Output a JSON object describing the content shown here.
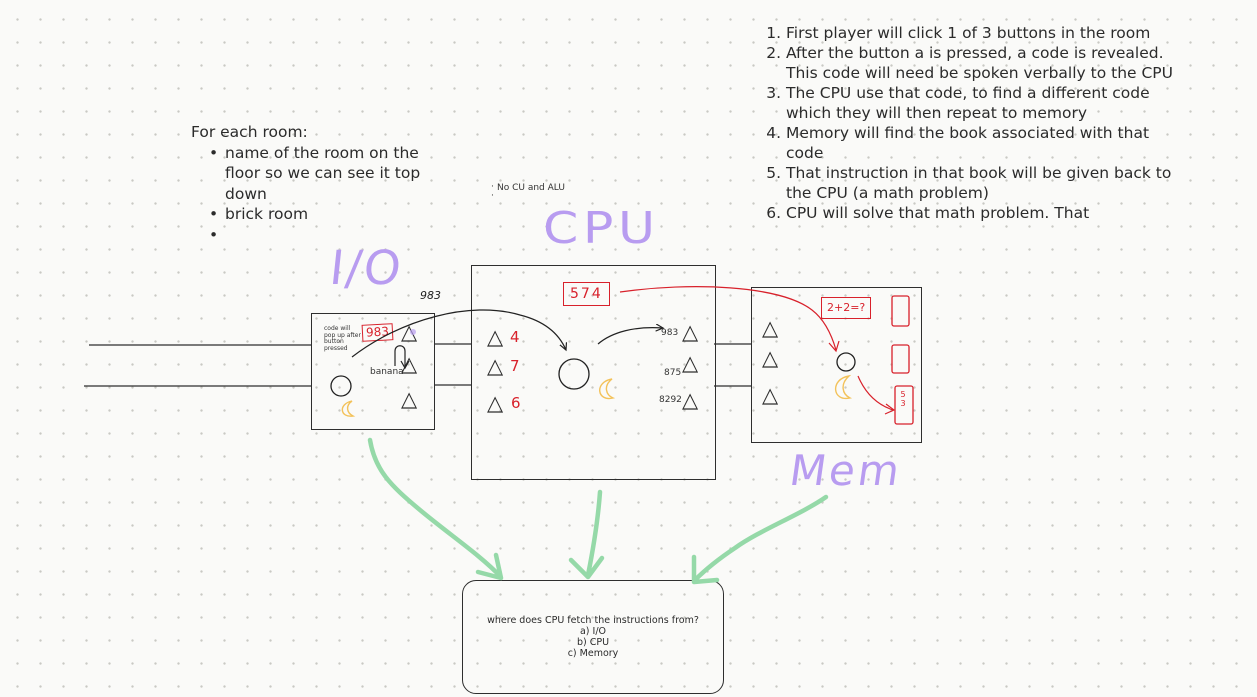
{
  "room_notes": {
    "heading": "For each room:",
    "items": [
      "name of the room on the floor so we can see it top down",
      "brick room",
      ""
    ]
  },
  "steps": [
    "First player will click 1 of 3 buttons in the room",
    "After the button a is pressed, a code is revealed. This code will need be spoken verbally to the CPU",
    "The CPU use that code, to find a different code which they will then repeat to memory",
    "Memory will find the book associated with that code",
    "That instruction in that book will be given back to the CPU (a math problem)",
    "CPU will solve that math problem. That"
  ],
  "cpu_note": "No CU and ALU",
  "labels": {
    "io": "I/O",
    "cpu": "CPU",
    "mem": "Mem"
  },
  "io_room": {
    "note": "code will pop up after button pressed",
    "code": "983",
    "item": "banana",
    "spoken_code": "983"
  },
  "cpu_room": {
    "code": "574",
    "button_numbers": [
      "4",
      "7",
      "6"
    ],
    "codes": [
      "983",
      "875",
      "8292"
    ]
  },
  "mem_room": {
    "problem": "2+2=?",
    "book_label": "5 3"
  },
  "quiz": {
    "question": "where does CPU fetch the instructions from?",
    "options": [
      "a) I/O",
      "b) CPU",
      "c) Memory"
    ]
  },
  "colors": {
    "purple": "#b89cf0",
    "red": "#d8212b",
    "green": "#95d9a8",
    "ink": "#2e2e2e",
    "banana": "#f3c25a"
  }
}
